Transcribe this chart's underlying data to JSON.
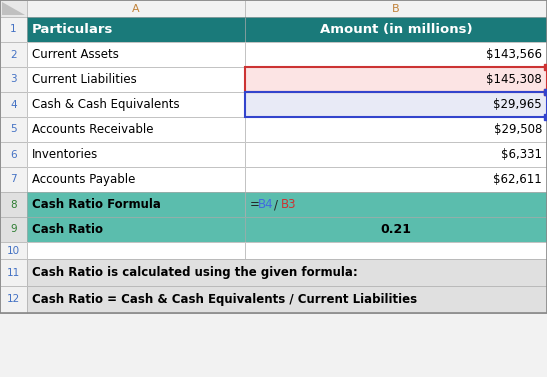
{
  "fig_width": 5.47,
  "fig_height": 3.77,
  "dpi": 100,
  "bg_color": "#f2f2f2",
  "header_bg": "#1a7a7a",
  "header_text_color": "#ffffff",
  "teal_row_bg": "#5bbdad",
  "white_row_bg": "#ffffff",
  "pink_row_bg": "#fce4e4",
  "blue_row_bg": "#e8eaf6",
  "note_bg": "#e0e0e0",
  "empty_bg": "#ffffff",
  "col_header_bg": "#ffffff",
  "col_header_text": "#c0823a",
  "col_header_B_text": "#c0823a",
  "row_num_text": "#4472c4",
  "row_num_teal_text": "#2e7d32",
  "grid_color": "#b0b0b0",
  "col_A_header": "A",
  "col_B_header": "B",
  "row_numbers": [
    "1",
    "2",
    "3",
    "4",
    "5",
    "6",
    "7",
    "8",
    "9",
    "10",
    "11",
    "12"
  ],
  "col_a_values": [
    "Particulars",
    "Current Assets",
    "Current Liabilities",
    "Cash & Cash Equivalents",
    "Accounts Receivable",
    "Inventories",
    "Accounts Payable",
    "Cash Ratio Formula",
    "Cash Ratio",
    "",
    "Cash Ratio is calculated using the given formula:",
    "Cash Ratio = Cash & Cash Equivalents / Current Liabilities"
  ],
  "col_b_values": [
    "Amount (in millions)",
    "$143,566",
    "$145,308",
    "$29,965",
    "$29,508",
    "$6,331",
    "$62,611",
    "",
    "0.21",
    "",
    "",
    ""
  ],
  "row_styles": [
    "header",
    "white",
    "pink",
    "blue",
    "white",
    "white",
    "white",
    "teal",
    "teal",
    "empty",
    "note",
    "note"
  ],
  "formula_b4_color": "#4169e1",
  "formula_b3_color": "#cc3333",
  "red_border_color": "#cc3333",
  "blue_border_color": "#3344cc"
}
